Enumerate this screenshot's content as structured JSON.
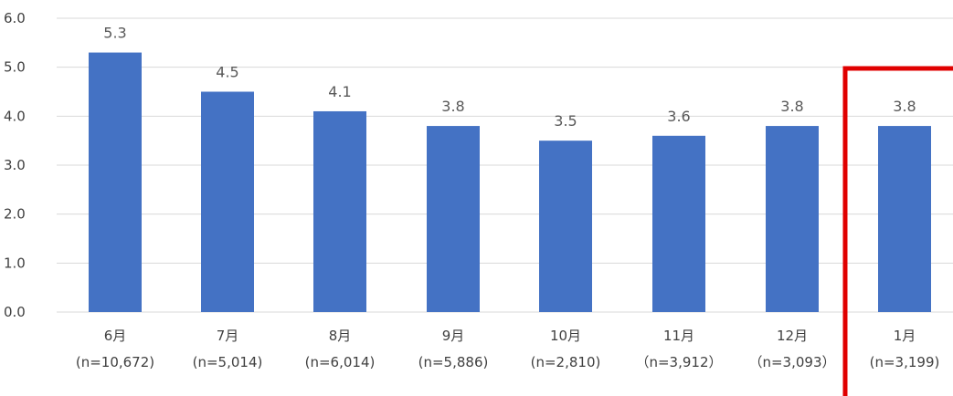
{
  "chart_data": {
    "type": "bar",
    "categories": [
      "6月",
      "7月",
      "8月",
      "9月",
      "10月",
      "11月",
      "12月",
      "1月"
    ],
    "category_sublabels": [
      "(n=10,672)",
      "(n=5,014)",
      "(n=6,014)",
      "(n=5,886)",
      "(n=2,810)",
      "（n=3,912）",
      "（n=3,093）",
      "(n=3,199)"
    ],
    "values": [
      5.3,
      4.5,
      4.1,
      3.8,
      3.5,
      3.6,
      3.8,
      3.8
    ],
    "value_labels": [
      "5.3",
      "4.5",
      "4.1",
      "3.8",
      "3.5",
      "3.6",
      "3.8",
      "3.8"
    ],
    "ylim": [
      0,
      6
    ],
    "y_ticks": [
      "0.0",
      "1.0",
      "2.0",
      "3.0",
      "4.0",
      "5.0",
      "6.0"
    ],
    "grid": true,
    "title": "",
    "xlabel": "",
    "ylabel": "",
    "highlighted_category": "1月",
    "colors": {
      "bar": "#4472c4",
      "grid": "#d9d9d9",
      "highlight_frame": "#e00000"
    }
  }
}
